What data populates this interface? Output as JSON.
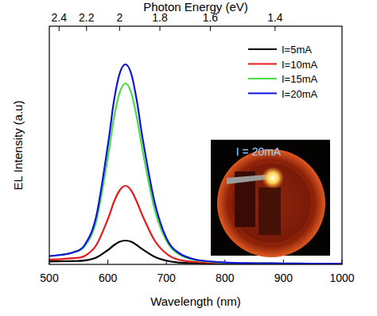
{
  "chart_data": {
    "type": "line",
    "xlabel": "Wavelength (nm)",
    "ylabel": "EL Intensity (a.u)",
    "x2label": "Photon Energy (eV)",
    "x": [
      500,
      520,
      540,
      560,
      580,
      600,
      610,
      620,
      630,
      640,
      650,
      660,
      680,
      700,
      720,
      750,
      800,
      850,
      900,
      950,
      1000
    ],
    "series": [
      {
        "name": "I=5mA",
        "color": "#000000",
        "values": [
          0.012,
          0.013,
          0.014,
          0.016,
          0.028,
          0.06,
          0.08,
          0.095,
          0.1,
          0.095,
          0.08,
          0.062,
          0.032,
          0.016,
          0.008,
          0.005,
          0.003,
          0.003,
          0.003,
          0.003,
          0.003
        ]
      },
      {
        "name": "I=10mA",
        "color": "#e41a1c",
        "values": [
          0.02,
          0.022,
          0.026,
          0.035,
          0.08,
          0.19,
          0.26,
          0.31,
          0.33,
          0.31,
          0.26,
          0.2,
          0.1,
          0.045,
          0.02,
          0.01,
          0.005,
          0.004,
          0.003,
          0.003,
          0.003
        ]
      },
      {
        "name": "I=15mA",
        "color": "#44dd44",
        "values": [
          0.035,
          0.04,
          0.05,
          0.075,
          0.18,
          0.45,
          0.61,
          0.72,
          0.76,
          0.72,
          0.61,
          0.47,
          0.23,
          0.1,
          0.045,
          0.018,
          0.007,
          0.005,
          0.004,
          0.003,
          0.003
        ]
      },
      {
        "name": "I=20mA",
        "color": "#1010e0",
        "values": [
          0.035,
          0.04,
          0.05,
          0.08,
          0.2,
          0.5,
          0.68,
          0.8,
          0.84,
          0.8,
          0.68,
          0.52,
          0.26,
          0.11,
          0.05,
          0.02,
          0.008,
          0.005,
          0.004,
          0.003,
          0.003
        ]
      }
    ],
    "xlim": [
      500,
      1000
    ],
    "xticks": [
      500,
      600,
      700,
      800,
      900,
      1000
    ],
    "x2ticks": [
      {
        "value": 516.7,
        "label": "2.4"
      },
      {
        "value": 563.6,
        "label": "2.2"
      },
      {
        "value": 620,
        "label": "2"
      },
      {
        "value": 688.9,
        "label": "1.8"
      },
      {
        "value": 775,
        "label": "1.6"
      },
      {
        "value": 885.7,
        "label": "1.4"
      }
    ],
    "ylim": [
      0,
      1
    ],
    "tick_labels": "x",
    "legend": "upper right",
    "annotations": [
      {
        "text": "I = 20mA"
      }
    ]
  }
}
